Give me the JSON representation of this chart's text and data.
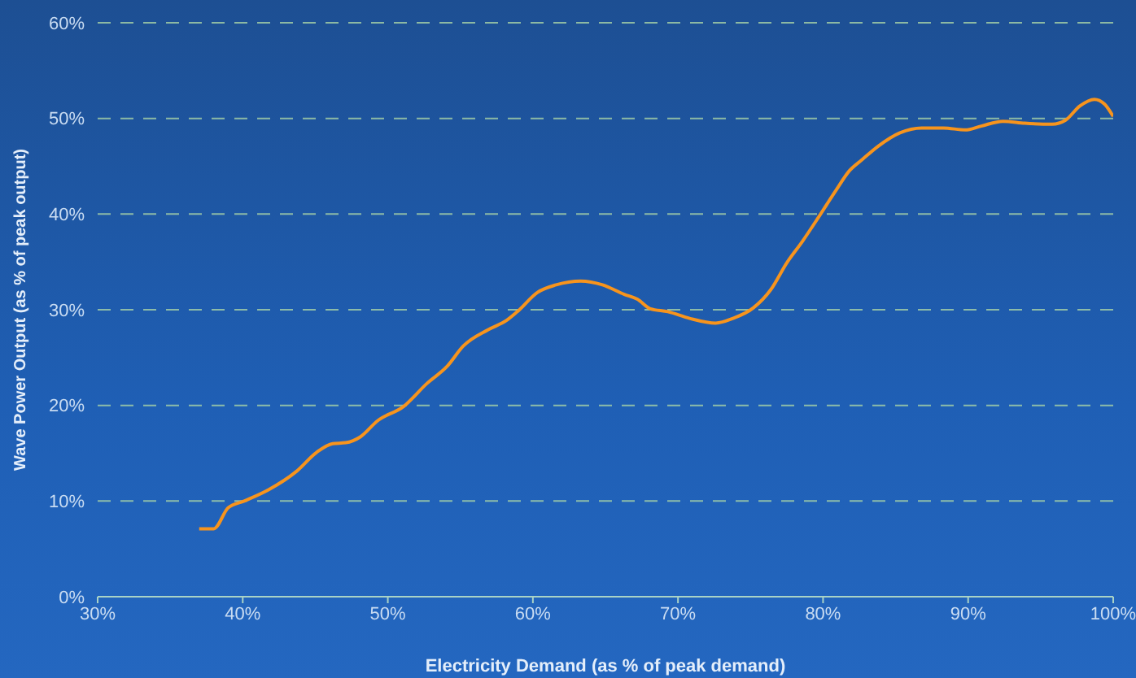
{
  "chart_data": {
    "type": "line",
    "xlabel": "Electricity Demand (as % of peak demand)",
    "ylabel": "Wave Power Output (as % of peak output)",
    "x": [
      37.0,
      38.0,
      39.0,
      40.1,
      41.8,
      43.7,
      45.1,
      46.2,
      47.1,
      48.1,
      49.3,
      51.1,
      52.7,
      54.1,
      55.2,
      56.9,
      58.2,
      59.0,
      60.3,
      61.6,
      63.3,
      64.8,
      66.3,
      67.2,
      68.1,
      69.3,
      70.8,
      72.6,
      73.8,
      75.2,
      76.4,
      77.5,
      78.6,
      79.7,
      80.9,
      81.8,
      82.7,
      83.8,
      85.3,
      86.8,
      88.3,
      89.8,
      90.9,
      92.4,
      93.9,
      95.8,
      96.7,
      97.7,
      98.7,
      99.4,
      100.0
    ],
    "series": [
      {
        "color": "#f7941d",
        "values": [
          7.1,
          7.1,
          9.3,
          10.0,
          11.2,
          13.1,
          15.1,
          16.0,
          16.1,
          16.7,
          18.4,
          19.9,
          22.3,
          24.1,
          26.2,
          27.9,
          28.9,
          29.9,
          31.8,
          32.6,
          33.0,
          32.6,
          31.6,
          31.1,
          30.1,
          29.8,
          29.1,
          28.6,
          29.1,
          30.2,
          32.1,
          34.9,
          37.2,
          39.7,
          42.5,
          44.5,
          45.7,
          47.1,
          48.5,
          49.0,
          49.0,
          48.8,
          49.2,
          49.7,
          49.5,
          49.4,
          49.8,
          51.3,
          52.0,
          51.5,
          50.2
        ]
      }
    ],
    "xlim": [
      30,
      100
    ],
    "ylim": [
      0,
      60
    ],
    "xticks": [
      {
        "value": 30,
        "label": "30%"
      },
      {
        "value": 40,
        "label": "40%"
      },
      {
        "value": 50,
        "label": "50%"
      },
      {
        "value": 60,
        "label": "60%"
      },
      {
        "value": 70,
        "label": "70%"
      },
      {
        "value": 80,
        "label": "80%"
      },
      {
        "value": 90,
        "label": "90%"
      },
      {
        "value": 100,
        "label": "100%"
      }
    ],
    "yticks": [
      {
        "value": 0,
        "label": "0%"
      },
      {
        "value": 10,
        "label": "10%"
      },
      {
        "value": 20,
        "label": "20%"
      },
      {
        "value": 30,
        "label": "30%"
      },
      {
        "value": 40,
        "label": "40%"
      },
      {
        "value": 50,
        "label": "50%"
      },
      {
        "value": 60,
        "label": "60%"
      }
    ],
    "grid": "y",
    "marker": "none",
    "line_style": "solid"
  }
}
